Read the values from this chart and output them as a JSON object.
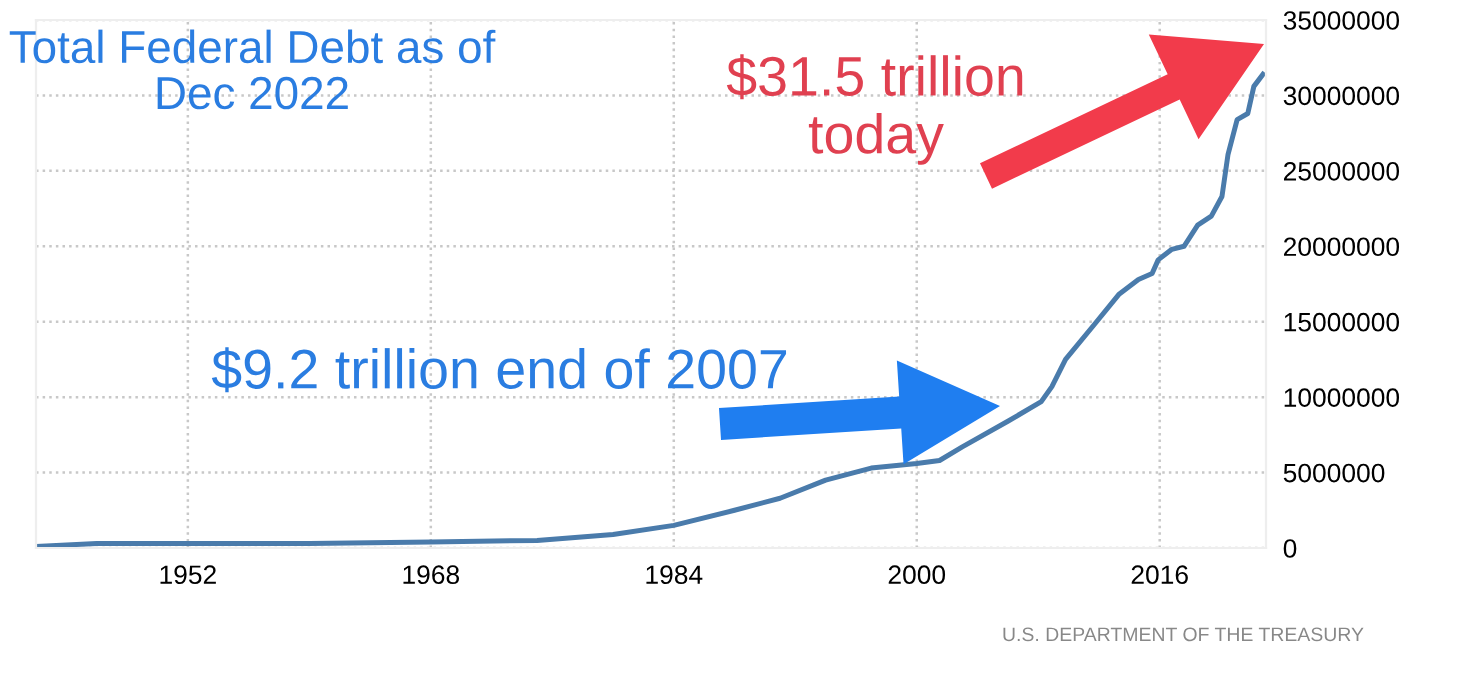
{
  "chart_data": {
    "type": "line",
    "title": "Total Federal Debt as of\nDec 2022",
    "x": [
      1942,
      1946,
      1952,
      1960,
      1968,
      1975,
      1980,
      1984,
      1988,
      1991,
      1994,
      1997,
      2000,
      2001.5,
      2003,
      2006,
      2008.2,
      2008.9,
      2009.8,
      2011.6,
      2013.3,
      2014.6,
      2015.5,
      2015.9,
      2016.8,
      2017.6,
      2018.5,
      2019.4,
      2020.1,
      2020.5,
      2021.1,
      2021.8,
      2022.2,
      2022.8
    ],
    "series": [
      {
        "color": "#4a7bab",
        "values": [
          100000,
          300000,
          300000,
          300000,
          400000,
          500000,
          900000,
          1500000,
          2500000,
          3300000,
          4500000,
          5300000,
          5600000,
          5800000,
          6700000,
          8400000,
          9700000,
          10700000,
          12500000,
          14700000,
          16800000,
          17800000,
          18200000,
          19100000,
          19800000,
          20000000,
          21400000,
          22000000,
          23300000,
          26100000,
          28400000,
          28800000,
          30600000,
          31400000
        ]
      }
    ],
    "xlim": [
      1942,
      2023
    ],
    "xticks": [
      1952,
      1968,
      1984,
      2000,
      2016
    ],
    "ylim": [
      0,
      35000000
    ],
    "yticks": [
      0,
      5000000,
      10000000,
      15000000,
      20000000,
      25000000,
      30000000,
      35000000
    ],
    "grid": true,
    "legend": false,
    "marker": "none",
    "line_style": "solid",
    "annotations": [
      "$31.5 trillion\ntoday",
      "$9.2 trillion end of 2007",
      "U.S. DEPARTMENT OF THE TREASURY"
    ]
  }
}
